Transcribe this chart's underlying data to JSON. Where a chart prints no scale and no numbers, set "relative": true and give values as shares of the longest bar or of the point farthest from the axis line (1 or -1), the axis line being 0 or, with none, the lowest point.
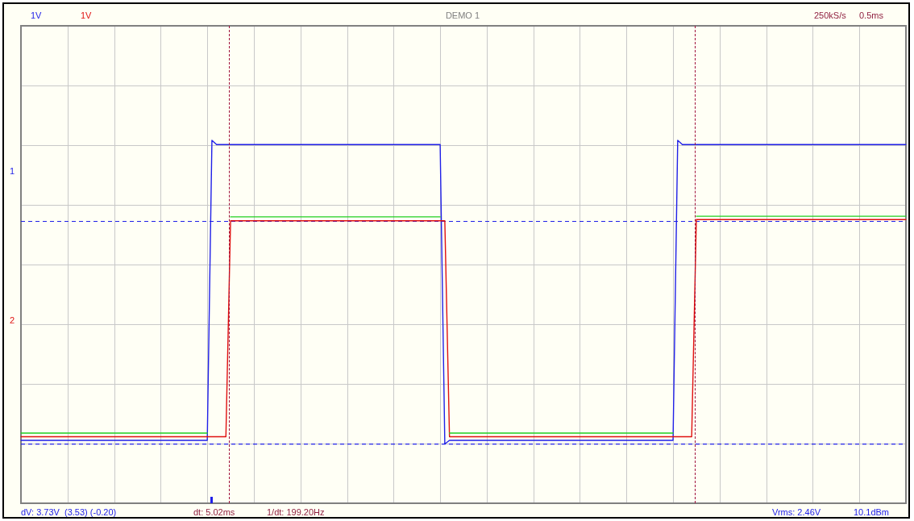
{
  "chart_data": {
    "type": "line",
    "relative": true,
    "tick_labels": false,
    "grid": true,
    "legend": false,
    "marker": "none",
    "line_style": "solid",
    "categories": [
      null,
      null,
      null,
      null,
      null,
      null,
      null,
      null,
      null,
      null,
      null,
      null,
      null,
      null,
      null,
      null,
      null,
      null,
      null,
      null,
      null,
      null,
      null,
      null,
      null,
      null,
      null,
      null,
      null,
      null,
      null,
      null,
      null,
      null,
      null,
      null,
      null,
      null,
      null,
      null,
      null,
      null,
      null,
      null,
      null,
      null,
      null,
      null,
      null,
      null,
      null,
      null,
      null,
      null,
      null,
      null,
      null,
      null,
      null,
      null,
      null,
      null,
      null,
      null,
      null,
      null,
      null,
      null,
      null,
      null,
      null,
      null,
      null,
      null,
      null,
      null,
      null,
      null,
      null,
      null,
      null,
      null,
      null,
      null,
      null,
      null,
      null,
      null,
      null,
      null,
      null,
      null,
      null,
      null,
      null,
      null,
      null,
      null,
      null,
      null,
      null,
      null,
      null,
      null,
      null,
      null,
      null,
      null,
      null,
      null,
      null,
      null,
      null,
      null,
      null,
      null,
      null,
      null,
      null,
      null,
      null,
      null,
      null,
      null,
      null,
      null,
      null,
      null,
      null,
      null,
      null,
      null,
      null,
      null,
      null,
      null,
      null,
      null,
      null,
      null,
      null,
      null,
      null,
      null,
      null,
      null,
      null,
      null,
      null,
      null,
      null,
      null,
      null,
      null,
      null,
      null,
      null,
      null,
      null,
      null,
      null,
      null,
      null,
      null,
      null,
      null,
      null,
      null,
      null,
      null,
      null,
      null,
      null,
      null,
      null,
      null,
      null,
      null,
      null,
      null,
      null,
      null,
      null,
      null,
      null,
      null,
      null,
      null,
      null,
      null,
      null
    ],
    "series": [
      {
        "color": "#20d020",
        "values": [
          0.036,
          0.036,
          0.036,
          0.036,
          0.036,
          0.036,
          0.036,
          0.036,
          0.036,
          0.036,
          0.036,
          0.036,
          0.036,
          0.036,
          0.036,
          0.036,
          0.036,
          0.036,
          0.036,
          0.036,
          0.036,
          0.036,
          0.036,
          0.036,
          0.036,
          0.036,
          0.036,
          0.036,
          0.036,
          0.036,
          0.036,
          0.036,
          0.036,
          0.036,
          0.036,
          0.036,
          0.036,
          0.036,
          0.036,
          0.036,
          0.036,
          null,
          null,
          null,
          null,
          0.748,
          0.748,
          0.748,
          0.748,
          0.748,
          0.748,
          0.748,
          0.748,
          0.748,
          0.748,
          0.748,
          0.748,
          0.748,
          0.748,
          0.748,
          0.748,
          0.748,
          0.748,
          0.748,
          0.748,
          0.748,
          0.748,
          0.748,
          0.748,
          0.748,
          0.748,
          0.748,
          0.748,
          0.748,
          0.748,
          0.748,
          0.748,
          0.748,
          0.748,
          0.748,
          0.748,
          0.748,
          0.748,
          0.748,
          0.748,
          0.748,
          0.748,
          0.748,
          0.748,
          0.748,
          0.748,
          null,
          0.036,
          0.036,
          0.036,
          0.036,
          0.036,
          0.036,
          0.036,
          0.036,
          0.036,
          0.036,
          0.036,
          0.036,
          0.036,
          0.036,
          0.036,
          0.036,
          0.036,
          0.036,
          0.036,
          0.036,
          0.036,
          0.036,
          0.036,
          0.036,
          0.036,
          0.036,
          0.036,
          0.036,
          0.036,
          0.036,
          0.036,
          0.036,
          0.036,
          0.036,
          0.036,
          0.036,
          0.036,
          0.036,
          0.036,
          0.036,
          0.036,
          0.036,
          0.036,
          0.036,
          0.036,
          0.036,
          0.036,
          0.036,
          0.036,
          null,
          null,
          null,
          null,
          0.75,
          0.75,
          0.75,
          0.75,
          0.75,
          0.75,
          0.75,
          0.75,
          0.75,
          0.75,
          0.75,
          0.75,
          0.75,
          0.75,
          0.75,
          0.75,
          0.75,
          0.75,
          0.75,
          0.75,
          0.75,
          0.75,
          0.75,
          0.75,
          0.75,
          0.75,
          0.75,
          0.75,
          0.75,
          0.75,
          0.75,
          0.75,
          0.75,
          0.75,
          0.75,
          0.75,
          0.75,
          0.75,
          0.75,
          0.75,
          0.75,
          0.75,
          0.75,
          0.75,
          0.75,
          0.75
        ]
      },
      {
        "color": "#e01010",
        "values": [
          0.024,
          0.024,
          0.024,
          0.024,
          0.024,
          0.024,
          0.024,
          0.024,
          0.024,
          0.024,
          0.024,
          0.024,
          0.024,
          0.024,
          0.024,
          0.024,
          0.024,
          0.024,
          0.024,
          0.024,
          0.024,
          0.024,
          0.024,
          0.024,
          0.024,
          0.024,
          0.024,
          0.024,
          0.024,
          0.024,
          0.024,
          0.024,
          0.024,
          0.024,
          0.024,
          0.024,
          0.024,
          0.024,
          0.024,
          0.024,
          0.024,
          0.024,
          0.024,
          0.024,
          0.024,
          0.735,
          0.735,
          0.735,
          0.735,
          0.735,
          0.735,
          0.735,
          0.735,
          0.735,
          0.735,
          0.735,
          0.735,
          0.735,
          0.735,
          0.735,
          0.735,
          0.735,
          0.735,
          0.735,
          0.735,
          0.735,
          0.735,
          0.735,
          0.735,
          0.735,
          0.735,
          0.735,
          0.735,
          0.735,
          0.735,
          0.735,
          0.735,
          0.735,
          0.735,
          0.735,
          0.735,
          0.735,
          0.735,
          0.735,
          0.735,
          0.735,
          0.735,
          0.735,
          0.735,
          0.735,
          0.735,
          0.735,
          0.024,
          0.024,
          0.024,
          0.024,
          0.024,
          0.024,
          0.024,
          0.024,
          0.024,
          0.024,
          0.024,
          0.024,
          0.024,
          0.024,
          0.024,
          0.024,
          0.024,
          0.024,
          0.024,
          0.024,
          0.024,
          0.024,
          0.024,
          0.024,
          0.024,
          0.024,
          0.024,
          0.024,
          0.024,
          0.024,
          0.024,
          0.024,
          0.024,
          0.024,
          0.024,
          0.024,
          0.024,
          0.024,
          0.024,
          0.024,
          0.024,
          0.024,
          0.024,
          0.024,
          0.024,
          0.024,
          0.024,
          0.024,
          0.024,
          0.024,
          0.024,
          0.024,
          0.024,
          0.739,
          0.739,
          0.739,
          0.739,
          0.739,
          0.739,
          0.739,
          0.739,
          0.739,
          0.739,
          0.739,
          0.739,
          0.739,
          0.739,
          0.739,
          0.739,
          0.739,
          0.739,
          0.739,
          0.739,
          0.739,
          0.739,
          0.739,
          0.739,
          0.739,
          0.739,
          0.739,
          0.739,
          0.739,
          0.739,
          0.739,
          0.739,
          0.739,
          0.739,
          0.739,
          0.739,
          0.739,
          0.739,
          0.739,
          0.739,
          0.739,
          0.739,
          0.739,
          0.739,
          0.739,
          0.739
        ]
      },
      {
        "color": "#2020e8",
        "values": [
          0.012,
          0.012,
          0.012,
          0.012,
          0.012,
          0.012,
          0.012,
          0.012,
          0.012,
          0.012,
          0.012,
          0.012,
          0.012,
          0.012,
          0.012,
          0.012,
          0.012,
          0.012,
          0.012,
          0.012,
          0.012,
          0.012,
          0.012,
          0.012,
          0.012,
          0.012,
          0.012,
          0.012,
          0.012,
          0.012,
          0.012,
          0.012,
          0.012,
          0.012,
          0.012,
          0.012,
          0.012,
          0.012,
          0.012,
          0.012,
          0.012,
          1,
          0.986,
          0.986,
          0.986,
          0.986,
          0.986,
          0.986,
          0.986,
          0.986,
          0.986,
          0.986,
          0.986,
          0.986,
          0.986,
          0.986,
          0.986,
          0.986,
          0.986,
          0.986,
          0.986,
          0.986,
          0.986,
          0.986,
          0.986,
          0.986,
          0.986,
          0.986,
          0.986,
          0.986,
          0.986,
          0.986,
          0.986,
          0.986,
          0.986,
          0.986,
          0.986,
          0.986,
          0.986,
          0.986,
          0.986,
          0.986,
          0.986,
          0.986,
          0.986,
          0.986,
          0.986,
          0.986,
          0.986,
          0.986,
          0.986,
          0,
          0.012,
          0.012,
          0.012,
          0.012,
          0.012,
          0.012,
          0.012,
          0.012,
          0.012,
          0.012,
          0.012,
          0.012,
          0.012,
          0.012,
          0.012,
          0.012,
          0.012,
          0.012,
          0.012,
          0.012,
          0.012,
          0.012,
          0.012,
          0.012,
          0.012,
          0.012,
          0.012,
          0.012,
          0.012,
          0.012,
          0.012,
          0.012,
          0.012,
          0.012,
          0.012,
          0.012,
          0.012,
          0.012,
          0.012,
          0.012,
          0.012,
          0.012,
          0.012,
          0.012,
          0.012,
          0.012,
          0.012,
          0.012,
          0.012,
          1,
          0.986,
          0.986,
          0.986,
          0.986,
          0.986,
          0.986,
          0.986,
          0.986,
          0.986,
          0.986,
          0.986,
          0.986,
          0.986,
          0.986,
          0.986,
          0.986,
          0.986,
          0.986,
          0.986,
          0.986,
          0.986,
          0.986,
          0.986,
          0.986,
          0.986,
          0.986,
          0.986,
          0.986,
          0.986,
          0.986,
          0.986,
          0.986,
          0.986,
          0.986,
          0.986,
          0.986,
          0.986,
          0.986,
          0.986,
          0.986,
          0.986,
          0.986,
          0.986,
          0.986,
          0.986,
          0.986,
          0.986,
          0.986,
          0.986
        ]
      }
    ],
    "ref_lines": [
      {
        "axis": "y",
        "value": 0.733,
        "color": "#2020e8",
        "line_style": "dashed"
      },
      {
        "axis": "y",
        "value": 0,
        "color": "#2020e8",
        "line_style": "dashed"
      }
    ],
    "annotations": [
      "1V",
      "1V",
      "DEMO 1",
      "250kS/s",
      "0.5ms",
      "1",
      "2",
      "dV: 3.73V  (3.53) (-0.20)",
      "dt: 5.02ms",
      "1/dt: 199.20Hz",
      "Vrms: 2.46V",
      "10.1dBm"
    ]
  }
}
